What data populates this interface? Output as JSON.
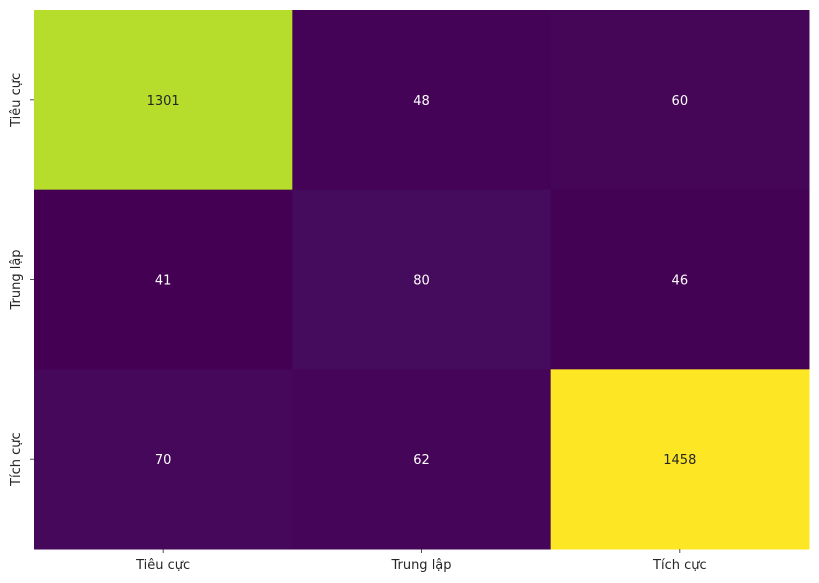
{
  "chart_data": {
    "type": "heatmap",
    "title": "",
    "xlabel": "",
    "ylabel": "",
    "x_categories": [
      "Tiêu cực",
      "Trung lập",
      "Tích cực"
    ],
    "y_categories": [
      "Tiêu cực",
      "Trung lập",
      "Tích cực"
    ],
    "values": [
      [
        1301,
        48,
        60
      ],
      [
        41,
        80,
        46
      ],
      [
        70,
        62,
        1458
      ]
    ],
    "colormap": "viridis",
    "annotations": true,
    "colorbar": false,
    "grid": false,
    "light_text_color": "#ffffff",
    "dark_text_color": "#262626"
  }
}
